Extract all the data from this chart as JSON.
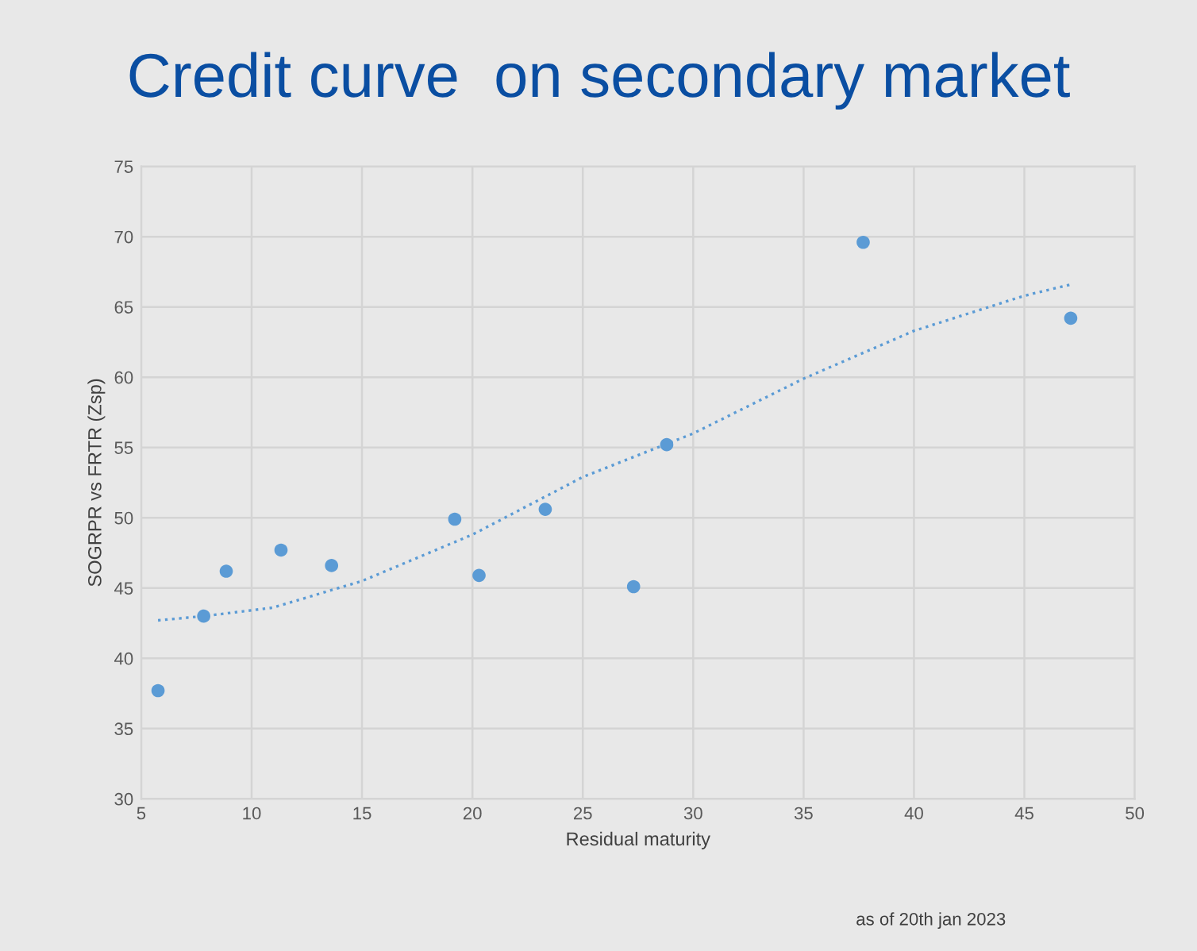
{
  "chart_data": {
    "type": "scatter",
    "title": "Credit curve  on secondary market",
    "xlabel": "Residual maturity",
    "ylabel": "SOGRPR vs FRTR (Zsp)",
    "annotations": [
      "as of 20th jan 2023"
    ],
    "series": [
      {
        "color": "#5b9bd5",
        "marker": "circle",
        "x": [
          5.76,
          7.83,
          8.85,
          11.33,
          13.62,
          19.2,
          20.3,
          23.3,
          27.3,
          28.8,
          37.7,
          47.1
        ],
        "values": [
          37.7,
          43.0,
          46.2,
          47.7,
          46.6,
          49.9,
          45.9,
          50.6,
          45.1,
          55.2,
          69.6,
          64.2
        ]
      },
      {
        "type": "line",
        "color": "#5b9bd5",
        "line_style": "dotted",
        "marker": "none",
        "x": [
          5.76,
          7.83,
          10.95,
          15.0,
          20.0,
          25.0,
          30.0,
          35.0,
          40.0,
          45.0,
          47.1
        ],
        "values": [
          42.7,
          43.0,
          43.6,
          45.5,
          48.8,
          52.9,
          56.0,
          59.9,
          63.3,
          65.8,
          66.6
        ]
      }
    ],
    "xlim": [
      5,
      50
    ],
    "xticks": [
      5,
      10,
      15,
      20,
      25,
      30,
      35,
      40,
      45,
      50
    ],
    "ylim": [
      30,
      75
    ],
    "yticks": [
      30,
      35,
      40,
      45,
      50,
      55,
      60,
      65,
      70,
      75
    ],
    "grid": true,
    "legend": false
  }
}
